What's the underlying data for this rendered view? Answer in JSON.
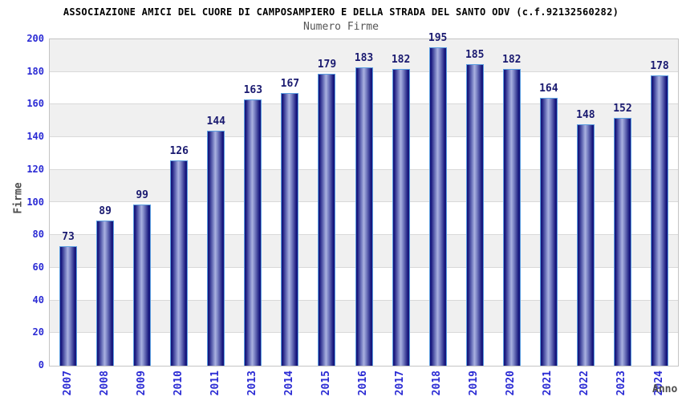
{
  "header": {
    "title": "ASSOCIAZIONE AMICI DEL CUORE DI CAMPOSAMPIERO E DELLA STRADA DEL SANTO ODV (c.f.92132560282)",
    "subtitle": "Numero Firme"
  },
  "chart_data": {
    "type": "bar",
    "title": "Numero Firme",
    "categories": [
      "2007",
      "2008",
      "2009",
      "2010",
      "2011",
      "2013",
      "2014",
      "2015",
      "2016",
      "2017",
      "2018",
      "2019",
      "2020",
      "2021",
      "2022",
      "2023",
      "2024"
    ],
    "values": [
      73,
      89,
      99,
      126,
      144,
      163,
      167,
      179,
      183,
      182,
      195,
      185,
      182,
      164,
      148,
      152,
      178
    ],
    "xlabel": "Anno",
    "ylabel": "Firme",
    "ylim": [
      0,
      200
    ],
    "ytick_step": 20,
    "grid": "horizontal-bands-alternating",
    "legend": "none",
    "bar_value_labels": true,
    "colors": {
      "bar_edge": "#5b9ee0",
      "bar_dark": "#17177d",
      "bar_mid": "#7a82c4",
      "bar_light": "#aab1e0",
      "tick_label": "#2b2bd4",
      "value_label": "#1a1a70",
      "band_gray": "#f0f0f0",
      "grid_line": "#d9d9d9",
      "axis_title": "#4d4d4d",
      "subtitle": "#555555",
      "title": "#000000"
    }
  }
}
